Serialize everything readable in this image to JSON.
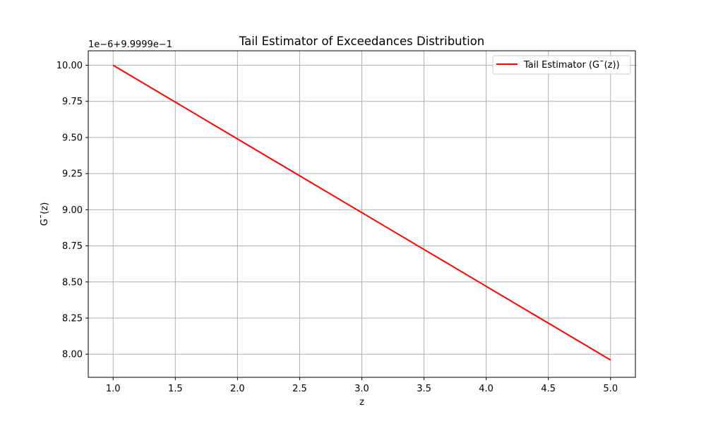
{
  "chart_data": {
    "type": "line",
    "title": "Tail Estimator of Exceedances Distribution",
    "xlabel": "z",
    "ylabel": "G¯(z)",
    "y_offset_text": "1e−6+9.9999e−1",
    "xlim": [
      0.8,
      5.2
    ],
    "ylim": [
      7.84,
      10.1
    ],
    "grid": true,
    "legend_position": "upper-right",
    "x_ticks": [
      1.0,
      1.5,
      2.0,
      2.5,
      3.0,
      3.5,
      4.0,
      4.5,
      5.0
    ],
    "x_tick_labels": [
      "1.0",
      "1.5",
      "2.0",
      "2.5",
      "3.0",
      "3.5",
      "4.0",
      "4.5",
      "5.0"
    ],
    "y_ticks": [
      8.0,
      8.25,
      8.5,
      8.75,
      9.0,
      9.25,
      9.5,
      9.75,
      10.0
    ],
    "y_tick_labels": [
      "8.00",
      "8.25",
      "8.50",
      "8.75",
      "9.00",
      "9.25",
      "9.50",
      "9.75",
      "10.00"
    ],
    "series": [
      {
        "name": "Tail Estimator (G¯(z))",
        "color": "#ff0000",
        "x": [
          1.0,
          1.5,
          2.0,
          2.5,
          3.0,
          3.5,
          4.0,
          4.5,
          5.0
        ],
        "y": [
          10.0,
          9.745,
          9.49,
          9.235,
          8.98,
          8.725,
          8.47,
          8.215,
          7.96
        ]
      }
    ]
  }
}
